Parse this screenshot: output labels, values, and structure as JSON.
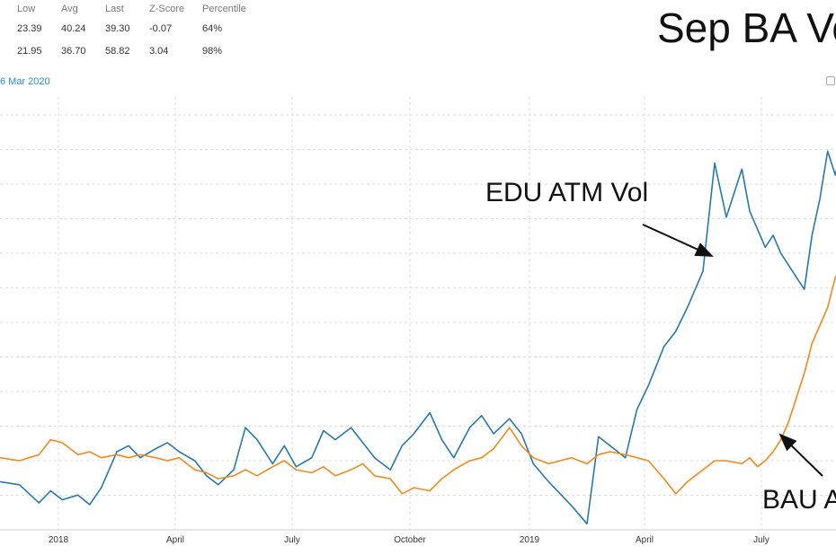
{
  "stats_table": {
    "headers": [
      "Low",
      "Avg",
      "Last",
      "Z-Score",
      "Percentile"
    ],
    "rows": [
      [
        "23.39",
        "40.24",
        "39.30",
        "-0.07",
        "64%"
      ],
      [
        "21.95",
        "36.70",
        "58.82",
        "3.04",
        "98%"
      ]
    ]
  },
  "date_range_text": "6 Mar 2020",
  "title": "Sep BA Vo",
  "annotations": {
    "edu_label": "EDU ATM Vol",
    "bau_label": "BAU A"
  },
  "colors": {
    "edu": "#2a77b0",
    "bau": "#f08a1e",
    "grid": "#dddddd",
    "axis_text": "#333333",
    "date_link": "#2a8fbd"
  },
  "chart_data": {
    "type": "line",
    "title": "Sep BA Vo",
    "xlabel": "",
    "ylabel": "",
    "x_ticks": [
      "2018",
      "April",
      "July",
      "October",
      "2019",
      "April",
      "July"
    ],
    "grid": true,
    "series": [
      {
        "name": "EDU ATM Vol",
        "x": [
          0,
          0.5,
          1,
          1.3,
          1.6,
          2,
          2.3,
          2.6,
          3,
          3.3,
          3.6,
          4,
          4.3,
          4.6,
          5,
          5.3,
          5.6,
          6,
          6.3,
          6.6,
          7,
          7.3,
          7.6,
          8,
          8.3,
          8.6,
          9,
          9.3,
          9.6,
          10,
          10.3,
          10.6,
          11,
          11.3,
          11.6,
          12,
          12.3,
          12.6,
          13,
          13.3,
          13.6,
          14,
          14.3,
          14.6,
          15,
          15.3,
          15.6,
          16,
          16.3,
          16.6,
          17,
          17.3,
          17.6,
          18,
          18.3,
          18.6,
          19,
          19.2,
          19.4,
          19.6,
          19.8,
          20,
          20.2,
          20.4,
          20.6,
          20.8,
          21,
          21.2,
          21.4,
          21.6,
          21.8,
          22,
          22.2,
          22.5
        ],
        "values": [
          38.0,
          37.5,
          34.5,
          36.5,
          35.0,
          35.8,
          34.2,
          37.0,
          43.0,
          44.0,
          42.0,
          43.5,
          44.5,
          43.0,
          41.5,
          39.0,
          37.5,
          40.0,
          47.0,
          45.0,
          41.0,
          44.0,
          40.5,
          42.0,
          46.5,
          45.0,
          47.0,
          44.5,
          42.0,
          40.0,
          44.0,
          46.0,
          49.5,
          45.0,
          42.0,
          47.0,
          49.0,
          46.0,
          48.5,
          46.0,
          41.0,
          38.0,
          36.0,
          34.0,
          31.0,
          45.5,
          44.0,
          42.0,
          50.0,
          54.0,
          60.5,
          63.0,
          67.0,
          73.0,
          91.0,
          82.0,
          90.0,
          83.0,
          80.0,
          77.0,
          79.0,
          76.0,
          74.0,
          72.0,
          70.0,
          79.0,
          85.0,
          93.0,
          89.0,
          95.0,
          97.0,
          99.0,
          92.0,
          96.0
        ]
      },
      {
        "name": "BAU ATM Vol",
        "x": [
          0,
          0.5,
          1,
          1.3,
          1.6,
          2,
          2.3,
          2.6,
          3,
          3.3,
          3.6,
          4,
          4.3,
          4.6,
          5,
          5.3,
          5.6,
          6,
          6.3,
          6.6,
          7,
          7.3,
          7.6,
          8,
          8.3,
          8.6,
          9,
          9.3,
          9.6,
          10,
          10.3,
          10.6,
          11,
          11.3,
          11.6,
          12,
          12.3,
          12.6,
          13,
          13.3,
          13.6,
          14,
          14.3,
          14.6,
          15,
          15.3,
          15.6,
          16,
          16.3,
          16.6,
          17,
          17.3,
          17.6,
          18,
          18.3,
          18.6,
          19,
          19.2,
          19.4,
          19.6,
          19.8,
          20,
          20.2,
          20.4,
          20.6,
          20.8,
          21,
          21.2,
          21.4,
          21.6,
          21.8,
          22,
          22.2,
          22.5
        ],
        "values": [
          42.0,
          41.5,
          42.5,
          45.0,
          44.5,
          42.5,
          43.0,
          42.0,
          42.5,
          42.0,
          42.5,
          42.0,
          41.5,
          42.0,
          40.0,
          39.5,
          38.5,
          39.0,
          40.0,
          39.0,
          40.5,
          41.5,
          40.0,
          39.5,
          40.5,
          39.0,
          40.0,
          41.0,
          39.0,
          38.5,
          36.0,
          37.0,
          36.5,
          38.5,
          40.0,
          41.5,
          42.0,
          43.5,
          47.0,
          44.0,
          42.0,
          41.0,
          41.5,
          42.0,
          41.0,
          42.5,
          43.0,
          42.5,
          42.0,
          41.5,
          38.5,
          36.0,
          38.0,
          40.0,
          41.5,
          41.5,
          41.0,
          42.0,
          40.5,
          41.5,
          43.0,
          45.0,
          48.0,
          52.0,
          56.0,
          61.0,
          64.0,
          67.0,
          72.0,
          74.0,
          76.0,
          77.5,
          79.0,
          80.5
        ]
      }
    ],
    "xlim": [
      0,
      22.5
    ],
    "ylim": [
      30,
      102
    ]
  }
}
